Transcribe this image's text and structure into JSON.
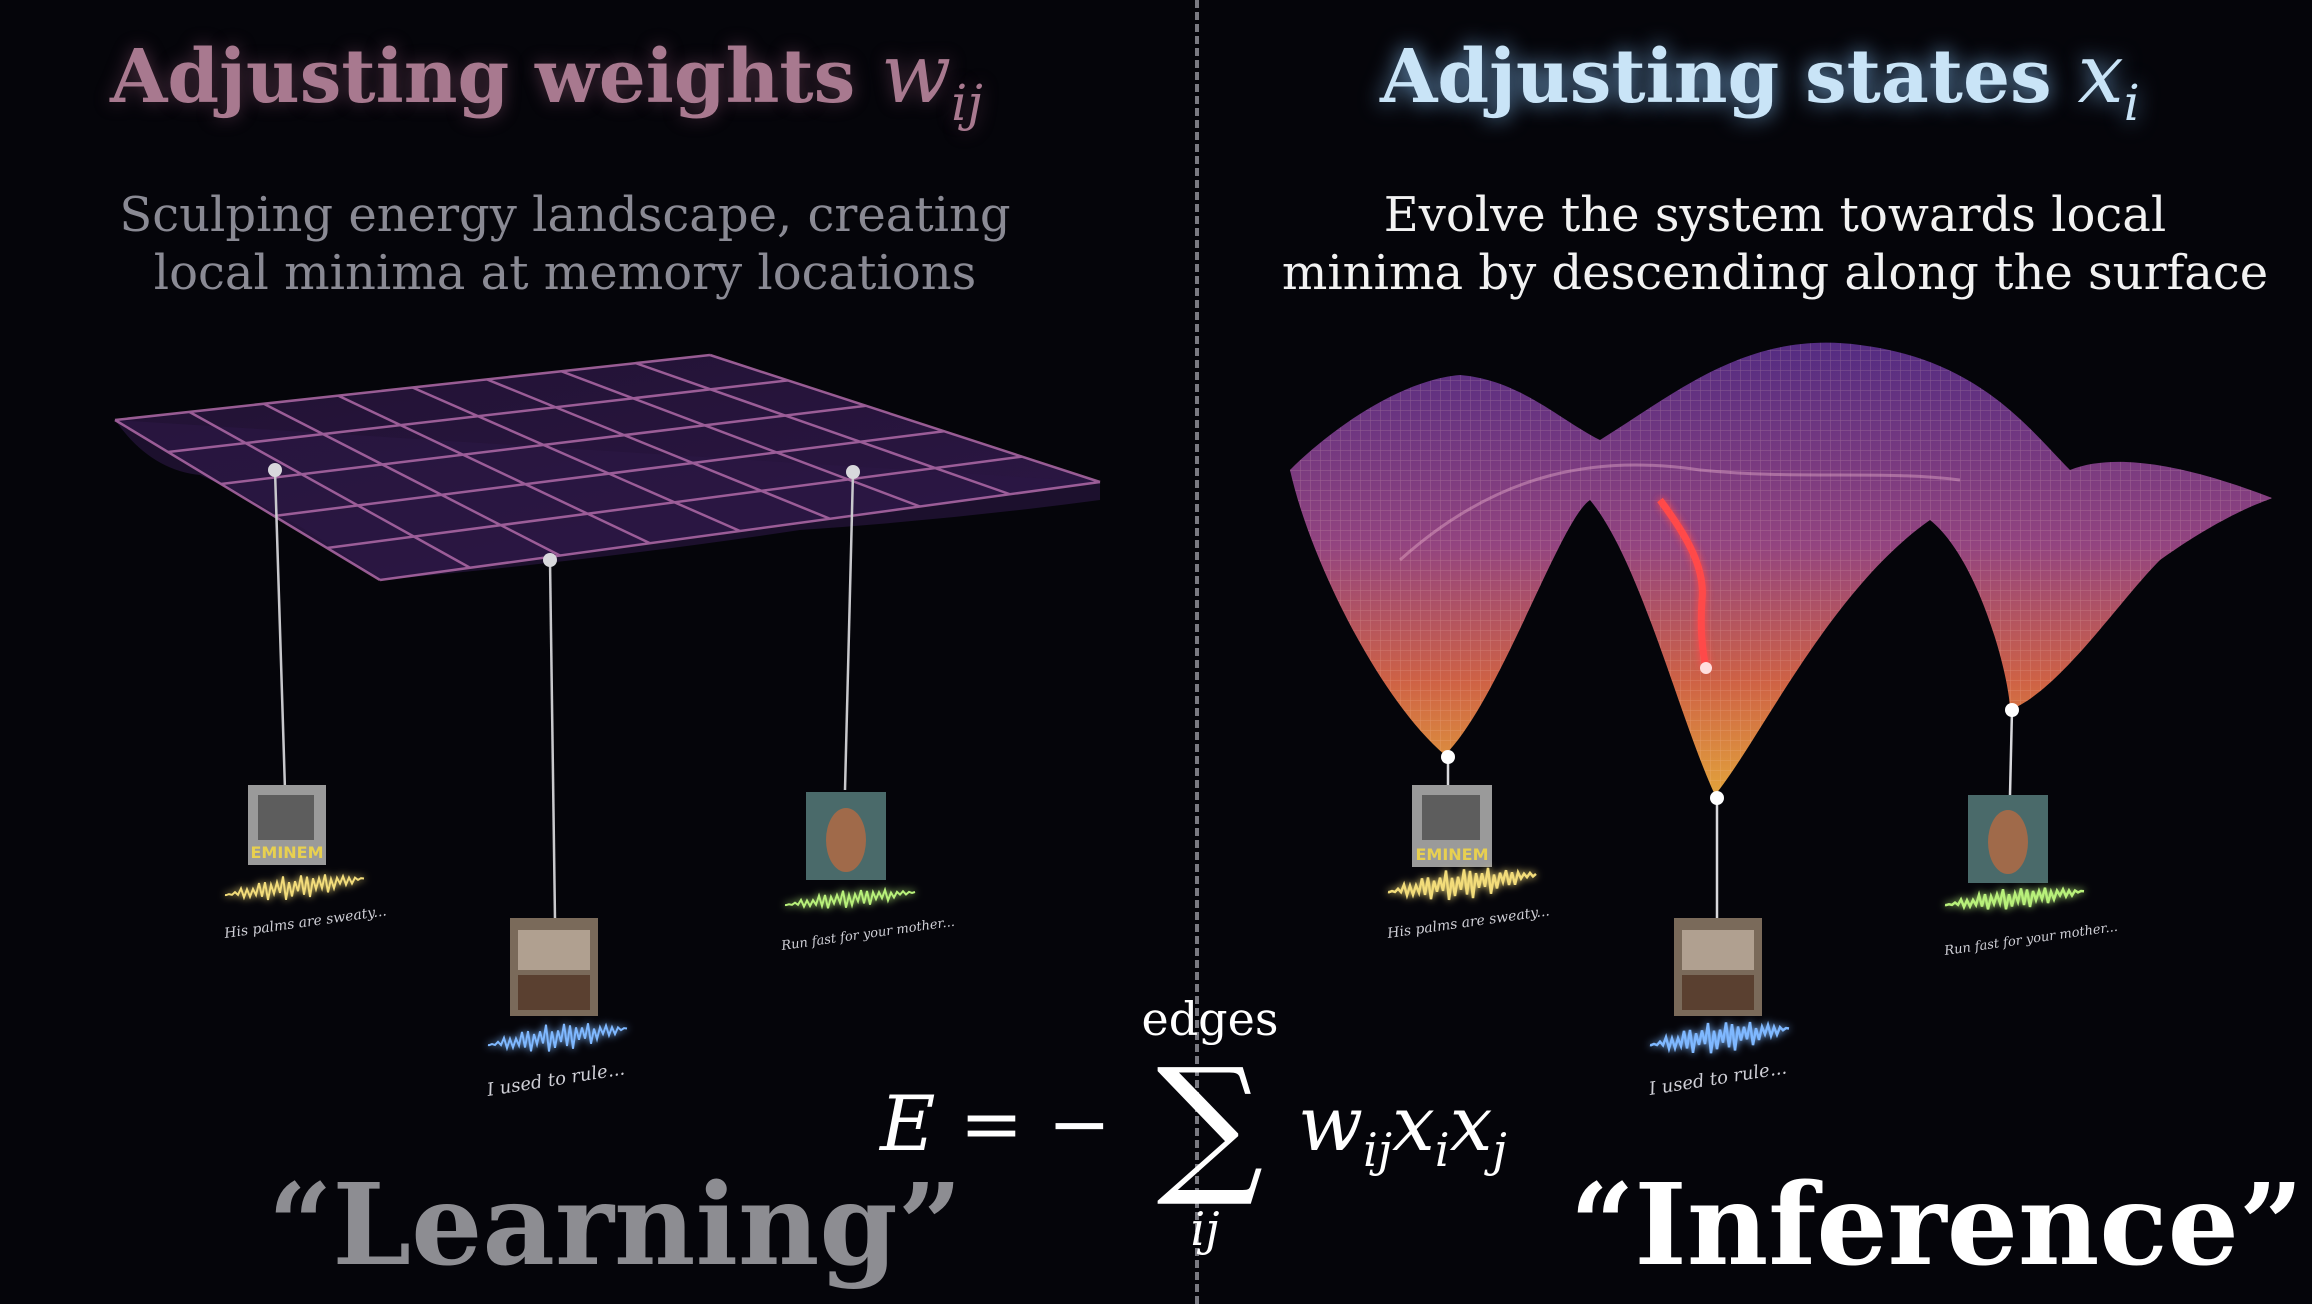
{
  "left": {
    "title": "Adjusting weights",
    "title_symbol": "w",
    "title_subscript": "ij",
    "description_line1": "Sculping energy landscape, creating",
    "description_line2": "local minima at memory locations",
    "caption": "“Learning”"
  },
  "right": {
    "title": "Adjusting states",
    "title_symbol": "x",
    "title_subscript": "i",
    "description_line1": "Evolve the system towards local",
    "description_line2": "minima by descending along the surface",
    "caption": "“Inference”"
  },
  "memories": {
    "eminem": {
      "cover_text": "EMINEM",
      "lyric": "His palms are sweaty..."
    },
    "coldplay": {
      "lyric": "I used to rule..."
    },
    "florence": {
      "lyric": "Run fast for your mother..."
    }
  },
  "equation": {
    "lhs": "E = −",
    "sum_upper": "edges",
    "sum_lower": "ij",
    "term": "w",
    "term_sub": "ij",
    "x1": "x",
    "x1_sub": "i",
    "x2": "x",
    "x2_sub": "j"
  },
  "colors": {
    "left_title": "#a8798f",
    "right_title": "#c9e4f7",
    "grid": "#b06aa8",
    "surface_low": "#f0a040",
    "surface_high": "#6a3aa0",
    "trajectory": "#ff5a5a",
    "wave_yellow": "#f2dc7a",
    "wave_blue": "#7fb8ff",
    "wave_green": "#b8f07a"
  }
}
